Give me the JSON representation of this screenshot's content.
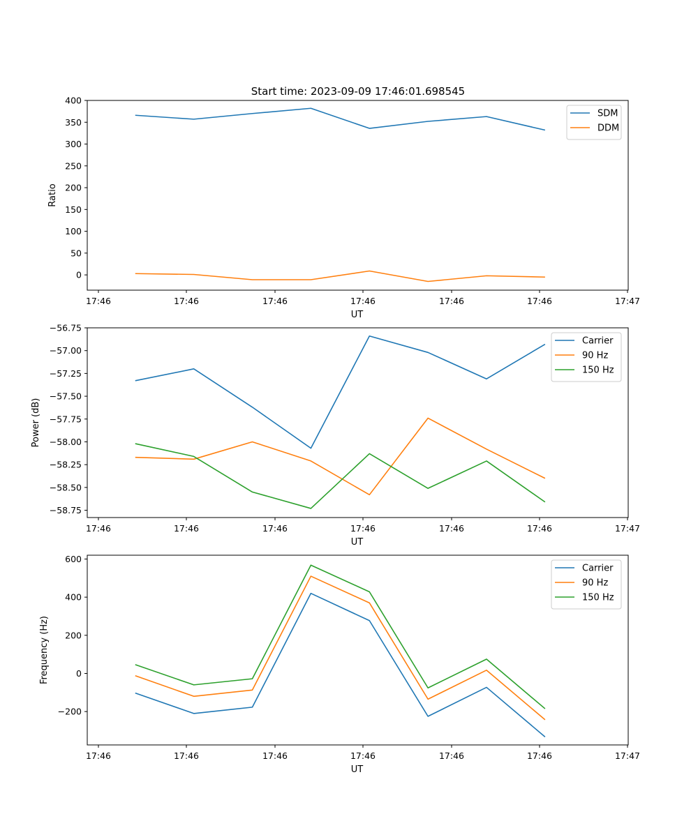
{
  "figure_title": "Start time: 2023-09-09 17:46:01.698545",
  "chart_data": [
    {
      "type": "line",
      "xlabel": "UT",
      "ylabel": "Ratio",
      "x_tick_labels": [
        "17:46",
        "17:46",
        "17:46",
        "17:46",
        "17:46",
        "17:46",
        "17:46"
      ],
      "x_tick_last": "17:47",
      "x": [
        1,
        2,
        3,
        4,
        5,
        6,
        7,
        8
      ],
      "xlim": [
        0.18,
        9.42
      ],
      "ylim": [
        -35,
        400
      ],
      "yticks": [
        0,
        50,
        100,
        150,
        200,
        250,
        300,
        350,
        400
      ],
      "series": [
        {
          "name": "SDM",
          "color": "#1f77b4",
          "values": [
            366,
            357,
            370,
            382,
            336,
            352,
            363,
            332
          ]
        },
        {
          "name": "DDM",
          "color": "#ff7f0e",
          "values": [
            3,
            1,
            -11,
            -11,
            9,
            -15,
            -2,
            -5
          ]
        }
      ],
      "legend": "top-right"
    },
    {
      "type": "line",
      "xlabel": "UT",
      "ylabel": "Power (dB)",
      "x_tick_labels": [
        "17:46",
        "17:46",
        "17:46",
        "17:46",
        "17:46",
        "17:46",
        "17:46"
      ],
      "x_tick_last": "17:47",
      "x": [
        1,
        2,
        3,
        4,
        5,
        6,
        7,
        8
      ],
      "xlim": [
        0.18,
        9.42
      ],
      "ylim": [
        -58.83,
        -56.75
      ],
      "yticks": [
        -58.75,
        -58.5,
        -58.25,
        -58.0,
        -57.75,
        -57.5,
        -57.25,
        -57.0,
        -56.75
      ],
      "ytick_labels": [
        "−58.75",
        "−58.50",
        "−58.25",
        "−58.00",
        "−57.75",
        "−57.50",
        "−57.25",
        "−57.00",
        "−56.75"
      ],
      "series": [
        {
          "name": "Carrier",
          "color": "#1f77b4",
          "values": [
            -57.33,
            -57.2,
            -57.62,
            -58.07,
            -56.84,
            -57.02,
            -57.31,
            -56.93
          ]
        },
        {
          "name": "90 Hz",
          "color": "#ff7f0e",
          "values": [
            -58.17,
            -58.19,
            -58.0,
            -58.21,
            -58.58,
            -57.74,
            -58.08,
            -58.4
          ]
        },
        {
          "name": "150 Hz",
          "color": "#2ca02c",
          "values": [
            -58.02,
            -58.16,
            -58.55,
            -58.73,
            -58.13,
            -58.51,
            -58.21,
            -58.66
          ]
        }
      ],
      "legend": "top-right"
    },
    {
      "type": "line",
      "xlabel": "UT",
      "ylabel": "Frequency (Hz)",
      "x_tick_labels": [
        "17:46",
        "17:46",
        "17:46",
        "17:46",
        "17:46",
        "17:46",
        "17:46"
      ],
      "x_tick_last": "17:47",
      "x": [
        1,
        2,
        3,
        4,
        5,
        6,
        7,
        8
      ],
      "xlim": [
        0.18,
        9.42
      ],
      "ylim": [
        -375,
        620
      ],
      "yticks": [
        -200,
        0,
        200,
        400,
        600
      ],
      "ytick_labels": [
        "−200",
        "0",
        "200",
        "400",
        "600"
      ],
      "series": [
        {
          "name": "Carrier",
          "color": "#1f77b4",
          "values": [
            -103,
            -210,
            -177,
            420,
            277,
            -225,
            -73,
            -333
          ]
        },
        {
          "name": "90 Hz",
          "color": "#ff7f0e",
          "values": [
            -12,
            -120,
            -87,
            510,
            370,
            -135,
            17,
            -243
          ]
        },
        {
          "name": "150 Hz",
          "color": "#2ca02c",
          "values": [
            46,
            -60,
            -28,
            568,
            428,
            -76,
            75,
            -185
          ]
        }
      ],
      "legend": "top-right"
    }
  ]
}
